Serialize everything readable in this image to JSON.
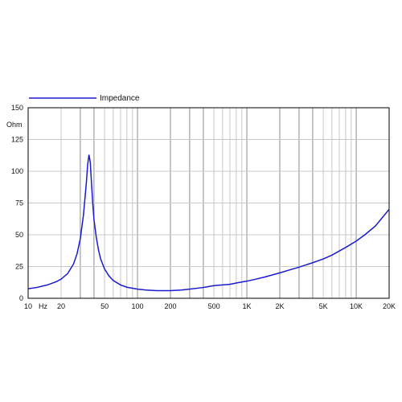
{
  "colors": {
    "series": "#1a1ad0",
    "grid_light": "#c8c8c8",
    "grid_dark": "#8c8c8c",
    "axis": "#000000"
  },
  "chart_data": {
    "type": "line",
    "title": "",
    "xlabel": "Hz",
    "ylabel": "Ohm",
    "xscale": "log",
    "xlim": [
      10,
      20000
    ],
    "ylim": [
      0,
      150
    ],
    "grid": true,
    "legend": "top-left",
    "x_ticks": [
      {
        "value": 10,
        "label": "10"
      },
      {
        "value": 20,
        "label": "20"
      },
      {
        "value": 50,
        "label": "50"
      },
      {
        "value": 100,
        "label": "100"
      },
      {
        "value": 200,
        "label": "200"
      },
      {
        "value": 500,
        "label": "500"
      },
      {
        "value": 1000,
        "label": "1K"
      },
      {
        "value": 2000,
        "label": "2K"
      },
      {
        "value": 5000,
        "label": "5K"
      },
      {
        "value": 10000,
        "label": "10K"
      },
      {
        "value": 20000,
        "label": "20K"
      }
    ],
    "y_ticks": [
      {
        "value": 0,
        "label": "0"
      },
      {
        "value": 25,
        "label": "25"
      },
      {
        "value": 50,
        "label": "50"
      },
      {
        "value": 75,
        "label": "75"
      },
      {
        "value": 100,
        "label": "100"
      },
      {
        "value": 125,
        "label": "125"
      },
      {
        "value": 150,
        "label": "150"
      }
    ],
    "series": [
      {
        "name": "Impedance",
        "x": [
          10,
          12,
          15,
          18,
          20,
          23,
          26,
          28,
          30,
          32,
          34,
          35,
          36,
          37,
          38,
          39,
          40,
          42,
          44,
          46,
          50,
          55,
          60,
          70,
          80,
          100,
          120,
          150,
          200,
          250,
          300,
          400,
          500,
          600,
          700,
          800,
          1000,
          1200,
          1500,
          2000,
          2500,
          3000,
          4000,
          5000,
          6000,
          8000,
          10000,
          12000,
          15000,
          20000
        ],
        "y": [
          7.5,
          8.5,
          10.5,
          13,
          15,
          19.5,
          27,
          35,
          47,
          65,
          90,
          105,
          113,
          107,
          90,
          74,
          62,
          48,
          38,
          31,
          23,
          17.5,
          14,
          10.5,
          8.7,
          7.2,
          6.5,
          6.0,
          6.0,
          6.5,
          7.2,
          8.5,
          10,
          10.5,
          11,
          12,
          13.5,
          15,
          17,
          20,
          22.5,
          24.5,
          28,
          31,
          34,
          40,
          45,
          50,
          57,
          70
        ]
      }
    ]
  }
}
